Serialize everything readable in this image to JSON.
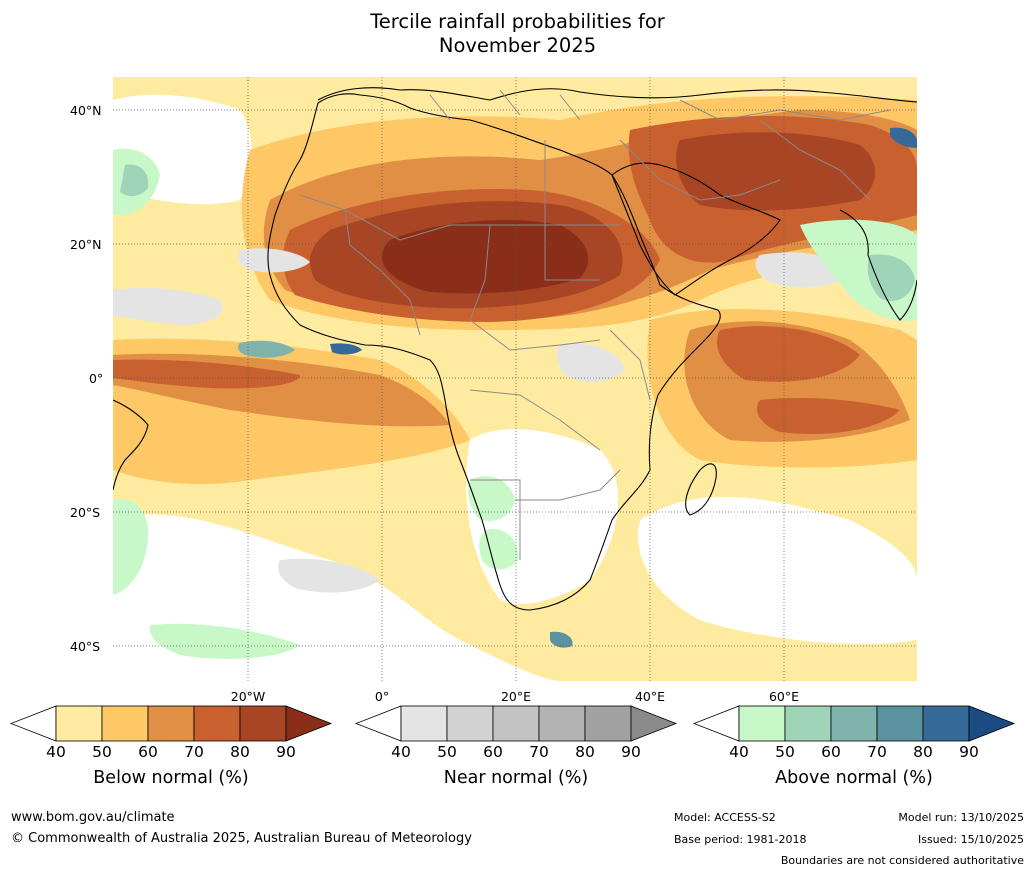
{
  "title_line1": "Tercile rainfall probabilities for",
  "title_line2": "November 2025",
  "lat_labels": [
    "40°N",
    "20°N",
    "0°",
    "20°S",
    "40°S"
  ],
  "lon_labels": [
    "20°W",
    "0°",
    "20°E",
    "40°E",
    "60°E"
  ],
  "colorbars": [
    {
      "label": "Below normal (%)",
      "ticks": [
        "40",
        "50",
        "60",
        "70",
        "80",
        "90"
      ],
      "colors": [
        "#ffeba0",
        "#fdc865",
        "#e08f45",
        "#c8612f",
        "#a84525",
        "#8a2e1a"
      ]
    },
    {
      "label": "Near normal (%)",
      "ticks": [
        "40",
        "50",
        "60",
        "70",
        "80",
        "90"
      ],
      "colors": [
        "#e4e4e4",
        "#d2d2d2",
        "#c3c3c3",
        "#b3b3b3",
        "#a2a2a2",
        "#8a8a8a"
      ]
    },
    {
      "label": "Above normal (%)",
      "ticks": [
        "40",
        "50",
        "60",
        "70",
        "80",
        "90"
      ],
      "colors": [
        "#c8f8c8",
        "#a0d4b8",
        "#80b4aa",
        "#5a92a0",
        "#356a98",
        "#1a4b82"
      ]
    }
  ],
  "footer": {
    "website": "www.bom.gov.au/climate",
    "copyright": "© Commonwealth of Australia 2025, Australian Bureau of Meteorology",
    "model": "Model: ACCESS-S2",
    "base_period": "Base period: 1981-2018",
    "model_run": "Model run: 13/10/2025",
    "issued": "Issued: 15/10/2025",
    "disclaimer": "Boundaries are not considered authoritative"
  }
}
